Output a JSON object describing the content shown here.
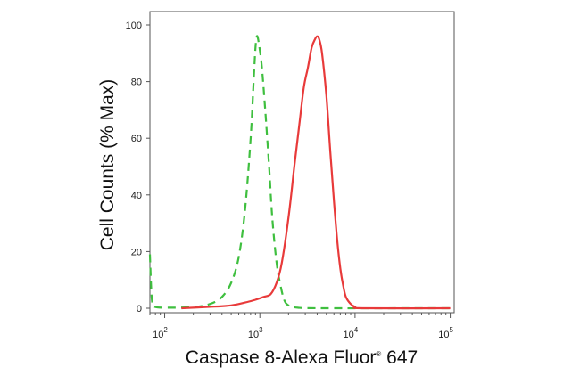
{
  "chart_data": {
    "type": "line",
    "xlabel": "Caspase 8-Alexa Fluor",
    "xlabel_mark": "®",
    "xlabel_suffix": " 647",
    "ylabel": "Cell Counts (% Max)",
    "xscale": "log",
    "xlim": [
      70,
      110000
    ],
    "ylim": [
      0,
      105
    ],
    "x_ticks": [
      {
        "value": 100,
        "base": "10",
        "exp": "2"
      },
      {
        "value": 1000,
        "base": "10",
        "exp": "3"
      },
      {
        "value": 10000,
        "base": "10",
        "exp": "4"
      },
      {
        "value": 100000,
        "base": "10",
        "exp": "5"
      }
    ],
    "y_ticks": [
      "0",
      "20",
      "40",
      "60",
      "80",
      "100"
    ],
    "grid": false,
    "legend": "none",
    "series": [
      {
        "color": "#3fbf3f",
        "style": "dashed",
        "points": [
          [
            70,
            19
          ],
          [
            72,
            8
          ],
          [
            74,
            2
          ],
          [
            78,
            0.5
          ],
          [
            100,
            0.2
          ],
          [
            200,
            0.4
          ],
          [
            300,
            1.5
          ],
          [
            400,
            4
          ],
          [
            500,
            9
          ],
          [
            600,
            18
          ],
          [
            700,
            35
          ],
          [
            800,
            60
          ],
          [
            860,
            80
          ],
          [
            900,
            92
          ],
          [
            930,
            96
          ],
          [
            970,
            94
          ],
          [
            1050,
            85
          ],
          [
            1150,
            68
          ],
          [
            1250,
            50
          ],
          [
            1350,
            32
          ],
          [
            1500,
            16
          ],
          [
            1650,
            8
          ],
          [
            1800,
            3
          ],
          [
            2000,
            1
          ],
          [
            2500,
            0.2
          ],
          [
            5000,
            0
          ],
          [
            100000,
            0
          ]
        ]
      },
      {
        "color": "#e83a3a",
        "style": "solid",
        "points": [
          [
            150,
            0
          ],
          [
            300,
            0.5
          ],
          [
            500,
            1
          ],
          [
            700,
            2
          ],
          [
            900,
            3
          ],
          [
            1100,
            4
          ],
          [
            1300,
            5
          ],
          [
            1500,
            9
          ],
          [
            1700,
            16
          ],
          [
            2000,
            32
          ],
          [
            2300,
            50
          ],
          [
            2600,
            65
          ],
          [
            2900,
            78
          ],
          [
            3200,
            85
          ],
          [
            3500,
            92
          ],
          [
            3800,
            95
          ],
          [
            4000,
            96
          ],
          [
            4200,
            95
          ],
          [
            4500,
            90
          ],
          [
            5000,
            75
          ],
          [
            5500,
            55
          ],
          [
            6000,
            38
          ],
          [
            6500,
            24
          ],
          [
            7000,
            14
          ],
          [
            7500,
            8
          ],
          [
            8000,
            4
          ],
          [
            9000,
            1.5
          ],
          [
            10000,
            0.5
          ],
          [
            12000,
            0
          ],
          [
            100000,
            0
          ]
        ]
      }
    ]
  }
}
